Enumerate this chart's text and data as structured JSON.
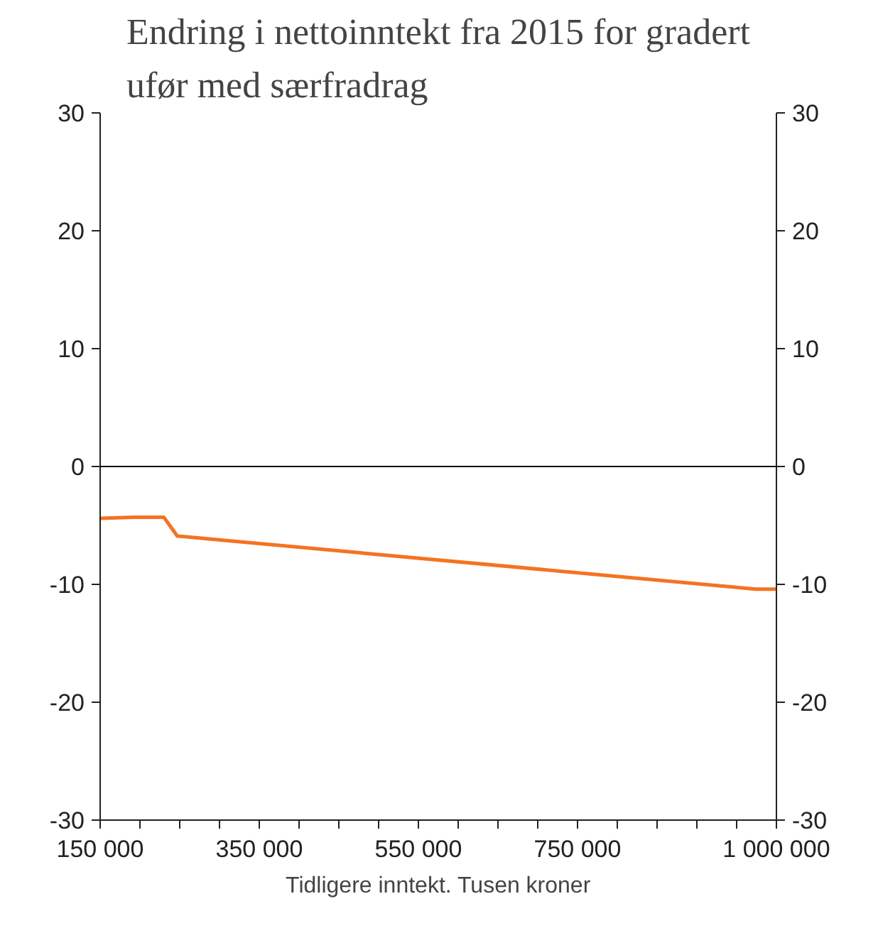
{
  "chart_data": {
    "type": "line",
    "title": "Endring i nettoinntekt fra 2015 for gradert ufør med særfradrag",
    "xlabel": "Tidligere inntekt. Tusen kroner",
    "x": [
      150000,
      191000,
      230000,
      247000,
      974000,
      1000000
    ],
    "series": [
      {
        "color": "#f47321",
        "values": [
          -4.4,
          -4.3,
          -4.3,
          -5.9,
          -10.4,
          -10.4
        ]
      }
    ],
    "xlim": [
      150000,
      1000000
    ],
    "xticks": [
      150000,
      {
        "value": 200000,
        "label": null
      },
      {
        "value": 250000,
        "label": null
      },
      {
        "value": 300000,
        "label": null
      },
      350000,
      {
        "value": 400000,
        "label": null
      },
      {
        "value": 450000,
        "label": null
      },
      {
        "value": 500000,
        "label": null
      },
      550000,
      {
        "value": 600000,
        "label": null
      },
      {
        "value": 650000,
        "label": null
      },
      {
        "value": 700000,
        "label": null
      },
      750000,
      {
        "value": 800000,
        "label": null
      },
      {
        "value": 850000,
        "label": null
      },
      {
        "value": 900000,
        "label": null
      },
      {
        "value": 950000,
        "label": null
      },
      {
        "value": 1000000,
        "label": "1 000 000"
      }
    ],
    "ylim": [
      -30,
      30
    ],
    "yticks": [
      -30,
      -20,
      -10,
      0,
      10,
      20,
      30
    ],
    "y2lim": [
      -30,
      30
    ],
    "y2ticks": [
      -30,
      -20,
      -10,
      0,
      10,
      20,
      30
    ],
    "ref_lines": [
      {
        "axis": "y",
        "value": 0,
        "color": "#000000"
      }
    ],
    "grid": false
  }
}
